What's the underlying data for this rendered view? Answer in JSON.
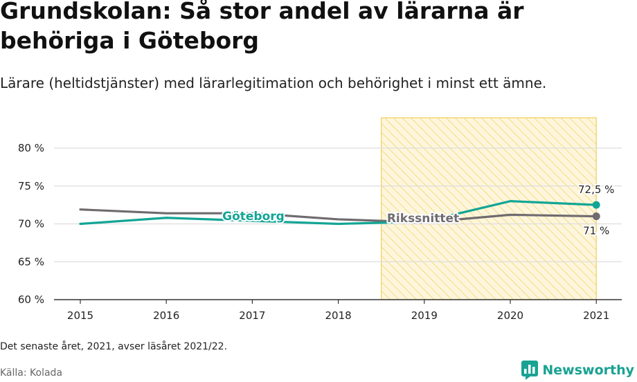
{
  "title": "Grundskolan: Så stor andel av lärarna är behöriga i Göteborg",
  "subtitle": "Lärare (heltidstjänster) med lärarlegitimation och behörighet i minst ett ämne.",
  "footnote": "Det senaste året, 2021, avser läsåret 2021/22.",
  "source": "Källa: Kolada",
  "brand": {
    "name": "Newsworthy",
    "icon": "bar-chart-logo-icon"
  },
  "colors": {
    "goteborg": "#12a595",
    "riks": "#6f6b6f",
    "highlight_stroke": "#f1cc55",
    "highlight_fill": "#fdf6dc",
    "grid": "#dddddd"
  },
  "chart_data": {
    "type": "line",
    "x": [
      2015,
      2016,
      2017,
      2018,
      2019,
      2020,
      2021
    ],
    "x_tick_labels": [
      "2015",
      "2016",
      "2017",
      "2018",
      "2019",
      "2020",
      "2021"
    ],
    "y_ticks": [
      60,
      65,
      70,
      75,
      80
    ],
    "y_tick_labels": [
      "60 %",
      "65 %",
      "70 %",
      "75 %",
      "80 %"
    ],
    "ylim": [
      60,
      84
    ],
    "series": [
      {
        "name": "Göteborg",
        "key": "goteborg",
        "values": [
          70.0,
          70.8,
          70.4,
          70.0,
          70.3,
          73.0,
          72.5
        ],
        "end_label": "72,5 %"
      },
      {
        "name": "Rikssnittet",
        "key": "riks",
        "values": [
          71.9,
          71.4,
          71.4,
          70.6,
          70.2,
          71.2,
          71.0
        ],
        "end_label": "71 %"
      }
    ],
    "highlight": {
      "from": 2018.5,
      "to": 2021
    }
  }
}
